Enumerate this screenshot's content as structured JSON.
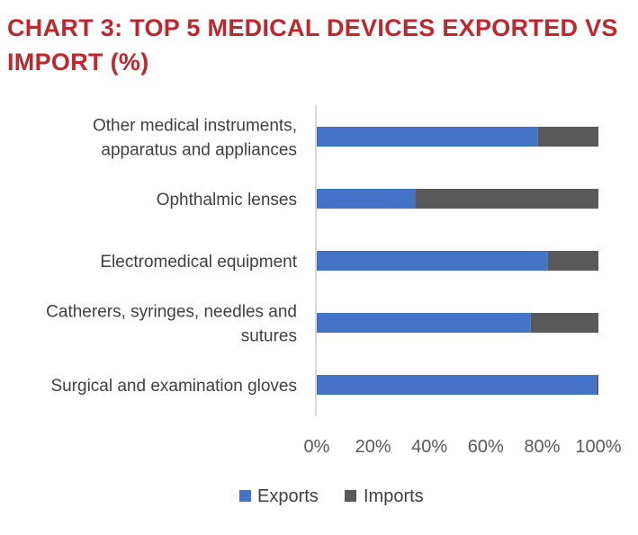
{
  "title": "CHART 3: TOP 5 MEDICAL DEVICES EXPORTED VS IMPORT (%)",
  "chart_data": {
    "type": "bar",
    "orientation": "horizontal",
    "stacked": "percent",
    "title": "CHART 3: TOP 5 MEDICAL DEVICES EXPORTED VS IMPORT (%)",
    "categories": [
      "Other medical instruments, apparatus and appliances",
      "Ophthalmic lenses",
      "Electromedical equipment",
      "Catherers, syringes, needles and sutures",
      "Surgical and examination gloves"
    ],
    "category_lines": [
      [
        "Other medical instruments,",
        "apparatus and appliances"
      ],
      [
        "Ophthalmic lenses"
      ],
      [
        "Electromedical equipment"
      ],
      [
        "Catherers, syringes, needles and",
        "sutures"
      ],
      [
        "Surgical and examination gloves"
      ]
    ],
    "series": [
      {
        "name": "Exports",
        "color": "#4472c4",
        "values": [
          78.5,
          35,
          82,
          76,
          99.3
        ]
      },
      {
        "name": "Imports",
        "color": "#595959",
        "values": [
          21.5,
          65,
          18,
          24,
          0.7
        ]
      }
    ],
    "xlim": [
      0,
      100
    ],
    "xticks": [
      0,
      20,
      40,
      60,
      80,
      100
    ],
    "xtick_labels": [
      "0%",
      "20%",
      "40%",
      "60%",
      "80%",
      "100%"
    ],
    "xlabel": "",
    "ylabel": "",
    "grid": false,
    "legend_position": "bottom"
  }
}
